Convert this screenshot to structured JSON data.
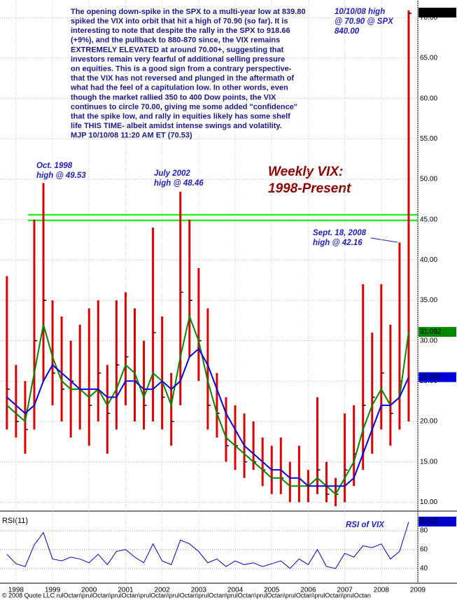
{
  "chart_data": [
    {
      "type": "ohlc",
      "title": "Weekly VIX:",
      "subtitle": "1998-Present",
      "note": [
        "The opening down-spike in the SPX to a multi-year low at 839.80",
        "spiked the VIX into orbit that hit a high of 70.90 (so far). It is",
        "interesting to note that despite the rally in the SPX to 918.66",
        "(+9%), and the pullback to 880-870 since, the VIX remains",
        "EXTREMELY ELEVATED at around 70.00+, suggesting that",
        "investors remain very fearful of additional selling pressure",
        "on equities. This is a good sign from a contrary perspective-",
        "that the VIX has not reversed and plunged in the aftermath of",
        "what had the feel of a capitulation low. In other words, even",
        "though the market rallied 350 to 400 Dow points, the VIX",
        "continues to circle 70.00, giving me some added \"confidence\"",
        "that the spike low, and rally in equities likely has some shelf",
        "life THIS TIME- albeit amidst intense swings and volatility.",
        "MJP  10/10/08  11:20 AM ET (70.53)"
      ],
      "annotations": [
        [
          "10/10/08 high",
          "@ 70.90 @ SPX",
          "840.00"
        ],
        [
          "Oct. 1998",
          "high @ 49.53"
        ],
        [
          "July 2002",
          "high @ 48.46"
        ],
        [
          "Sept. 18, 2008",
          "high @ 42.16"
        ]
      ],
      "x": [
        1997.75,
        1998,
        1998.25,
        1998.5,
        1998.75,
        1999,
        1999.25,
        1999.5,
        1999.75,
        2000,
        2000.25,
        2000.5,
        2000.75,
        2001,
        2001.25,
        2001.5,
        2001.75,
        2002,
        2002.25,
        2002.5,
        2002.75,
        2003,
        2003.25,
        2003.5,
        2003.75,
        2004,
        2004.25,
        2004.5,
        2004.75,
        2005,
        2005.25,
        2005.5,
        2005.75,
        2006,
        2006.25,
        2006.5,
        2006.75,
        2007,
        2007.25,
        2007.5,
        2007.75,
        2008,
        2008.25,
        2008.5,
        2008.75
      ],
      "high": [
        38,
        27,
        25,
        45,
        49.53,
        35,
        33,
        30,
        32,
        34,
        35,
        27,
        35,
        36,
        34,
        30,
        44,
        33,
        26,
        48.46,
        45,
        39,
        34,
        26,
        23,
        22,
        21,
        20,
        18,
        17,
        18,
        15,
        17,
        14,
        23,
        15,
        13,
        21,
        22,
        37,
        31,
        37,
        32,
        42.16,
        70.9
      ],
      "low": [
        19,
        18,
        16,
        19,
        25,
        22,
        20,
        18,
        19,
        17,
        20,
        16,
        19,
        22,
        20,
        19,
        20,
        19,
        17,
        22,
        28,
        25,
        19,
        18,
        15,
        14,
        13,
        14,
        12,
        11,
        11,
        10,
        10,
        10,
        11,
        10,
        9.5,
        10,
        12,
        14,
        16,
        19,
        17,
        19,
        20
      ],
      "close": [
        24,
        20,
        19,
        30,
        35,
        26,
        24,
        25,
        24,
        22,
        26,
        21,
        27,
        28,
        25,
        22,
        31,
        23,
        20,
        36,
        35,
        30,
        22,
        21,
        17,
        17,
        15,
        15,
        14,
        13,
        13,
        12,
        12,
        12,
        14,
        11,
        11,
        14,
        16,
        22,
        23,
        26,
        21,
        25,
        70.55
      ],
      "color": "#dd0000",
      "averages": [
        {
          "color": "#008800",
          "values": [
            22,
            21,
            20,
            26,
            32,
            28,
            25,
            24,
            24,
            23,
            24,
            22,
            24,
            27,
            26,
            23,
            26,
            25,
            22,
            28,
            33,
            30,
            25,
            21,
            18,
            17,
            16,
            15,
            14,
            13,
            13,
            12,
            12,
            12,
            13,
            12,
            11,
            13,
            15,
            19,
            22,
            24,
            22,
            23,
            31.092
          ]
        },
        {
          "color": "#0000dd",
          "values": [
            23,
            22,
            21,
            22,
            25,
            27,
            26,
            25,
            24,
            24,
            24,
            23,
            23,
            25,
            25,
            24,
            24,
            25,
            24,
            25,
            28,
            29,
            27,
            24,
            21,
            19,
            17,
            16,
            15,
            14,
            14,
            13,
            13,
            12,
            12,
            12,
            12,
            12,
            13,
            16,
            19,
            22,
            22,
            23,
            25.487
          ]
        }
      ],
      "reference_lines": [
        {
          "value": 45.6,
          "color": "#00ee00"
        },
        {
          "value": 44.9,
          "color": "#00ee00"
        }
      ],
      "xlim": [
        1997.6,
        2009.0
      ],
      "ylim": [
        8.9,
        71.5
      ],
      "xticks": [
        1998,
        1999,
        2000,
        2001,
        2002,
        2003,
        2004,
        2005,
        2006,
        2007,
        2008,
        2009
      ],
      "yticks": [
        {
          "value": 10,
          "label": "10.00"
        },
        {
          "value": 15,
          "label": "15.00"
        },
        {
          "value": 20,
          "label": "20.00"
        },
        {
          "value": 25,
          "label": "25.00"
        },
        {
          "value": 30,
          "label": "30.00"
        },
        {
          "value": 35,
          "label": "35.00"
        },
        {
          "value": 40,
          "label": "40.00"
        },
        {
          "value": 45,
          "label": "45.00"
        },
        {
          "value": 50,
          "label": "50.00"
        },
        {
          "value": 55,
          "label": "55.00"
        },
        {
          "value": 60,
          "label": "60.00"
        },
        {
          "value": 65,
          "label": "65.00"
        },
        {
          "value": 70,
          "label": "70.00"
        }
      ],
      "grid": true
    },
    {
      "type": "line",
      "title": "RSI(11)",
      "annotation": "RSI of VIX",
      "color": "#0000cc",
      "values": [
        55,
        45,
        42,
        65,
        78,
        50,
        48,
        52,
        50,
        46,
        55,
        44,
        58,
        60,
        52,
        46,
        66,
        48,
        44,
        70,
        66,
        58,
        46,
        50,
        42,
        48,
        44,
        46,
        42,
        45,
        48,
        40,
        50,
        44,
        60,
        42,
        40,
        56,
        52,
        64,
        62,
        66,
        50,
        58,
        89.03
      ],
      "ylim": [
        24.4,
        97
      ],
      "yticks": [
        40,
        60,
        80
      ],
      "grid": true
    }
  ],
  "footer": "© 2008 Quote LLC rulOctan\\prulOctan\\prulOctan\\prulOctan\\prulOctan\\prulOctan\\prulOctan\\prulOctan\\prulOctan\\prulOctan\\prulOctan"
}
